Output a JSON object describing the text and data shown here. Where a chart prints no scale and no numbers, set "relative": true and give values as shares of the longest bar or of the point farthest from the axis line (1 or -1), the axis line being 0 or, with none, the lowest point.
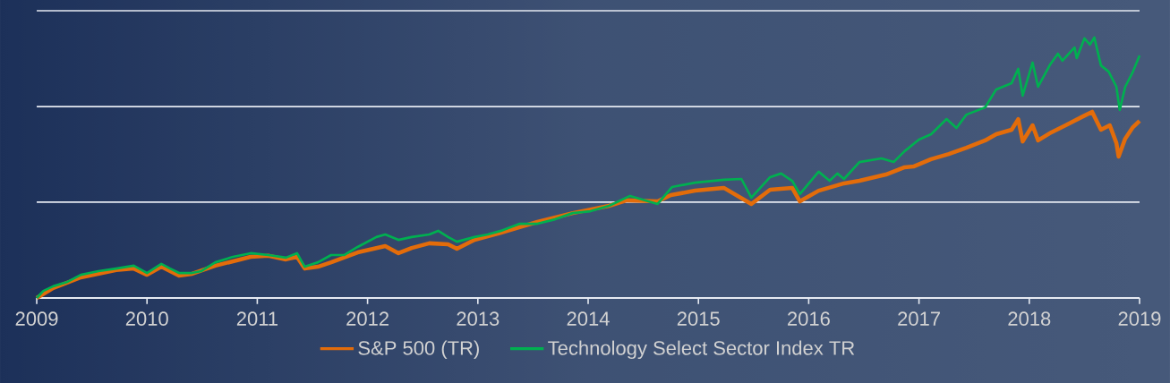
{
  "chart_data": {
    "type": "line",
    "relative": true,
    "xlim": [
      2009,
      2019
    ],
    "xticks": [
      2009,
      2010,
      2011,
      2012,
      2013,
      2014,
      2015,
      2016,
      2017,
      2018,
      2019
    ],
    "ref_lines": [
      {
        "axis": "y",
        "value": 0.368,
        "color": "#e6eaf2"
      },
      {
        "axis": "y",
        "value": 0.735,
        "color": "#e6eaf2"
      },
      {
        "axis": "y",
        "value": 1.103,
        "color": "#e6eaf2"
      }
    ],
    "legend": "bottom",
    "series": [
      {
        "name": "S&P 500 (TR)",
        "color": "#e36c0a",
        "x": [
          2009.0,
          2009.15,
          2009.4,
          2009.72,
          2009.88,
          2010.0,
          2010.13,
          2010.29,
          2010.41,
          2010.62,
          2010.94,
          2011.1,
          2011.26,
          2011.36,
          2011.43,
          2011.55,
          2011.67,
          2011.91,
          2012.16,
          2012.28,
          2012.4,
          2012.56,
          2012.73,
          2012.81,
          2012.97,
          2013.21,
          2013.54,
          2013.86,
          2014.19,
          2014.35,
          2014.63,
          2014.75,
          2014.97,
          2015.23,
          2015.48,
          2015.65,
          2015.85,
          2015.92,
          2016.09,
          2016.32,
          2016.46,
          2016.7,
          2016.87,
          2016.95,
          2017.11,
          2017.27,
          2017.43,
          2017.6,
          2017.7,
          2017.84,
          2017.9,
          2017.94,
          2018.03,
          2018.08,
          2018.2,
          2018.33,
          2018.49,
          2018.57,
          2018.65,
          2018.73,
          2018.79,
          2018.81,
          2018.87,
          2018.94,
          2019.0
        ],
        "values": [
          0,
          0.038,
          0.079,
          0.107,
          0.113,
          0.089,
          0.12,
          0.086,
          0.093,
          0.124,
          0.158,
          0.162,
          0.148,
          0.158,
          0.113,
          0.12,
          0.137,
          0.175,
          0.199,
          0.172,
          0.192,
          0.21,
          0.206,
          0.189,
          0.223,
          0.251,
          0.292,
          0.326,
          0.354,
          0.375,
          0.371,
          0.395,
          0.412,
          0.423,
          0.361,
          0.416,
          0.423,
          0.371,
          0.412,
          0.44,
          0.45,
          0.474,
          0.502,
          0.505,
          0.533,
          0.553,
          0.577,
          0.605,
          0.629,
          0.646,
          0.687,
          0.601,
          0.663,
          0.605,
          0.636,
          0.663,
          0.698,
          0.715,
          0.646,
          0.663,
          0.595,
          0.543,
          0.612,
          0.656,
          0.68
        ]
      },
      {
        "name": "Technology Select Sector Index TR",
        "color": "#00b050",
        "x": [
          2009.0,
          2009.06,
          2009.15,
          2009.28,
          2009.4,
          2009.56,
          2009.72,
          2009.88,
          2010.0,
          2010.13,
          2010.21,
          2010.29,
          2010.41,
          2010.49,
          2010.62,
          2010.78,
          2010.94,
          2011.1,
          2011.26,
          2011.36,
          2011.43,
          2011.55,
          2011.67,
          2011.79,
          2011.91,
          2012.08,
          2012.16,
          2012.28,
          2012.4,
          2012.56,
          2012.64,
          2012.73,
          2012.81,
          2012.97,
          2013.09,
          2013.21,
          2013.38,
          2013.54,
          2013.7,
          2013.86,
          2014.02,
          2014.19,
          2014.38,
          2014.63,
          2014.76,
          2014.97,
          2015.23,
          2015.39,
          2015.48,
          2015.65,
          2015.75,
          2015.85,
          2015.92,
          2016.09,
          2016.19,
          2016.26,
          2016.32,
          2016.46,
          2016.66,
          2016.77,
          2016.87,
          2017.0,
          2017.11,
          2017.25,
          2017.34,
          2017.43,
          2017.6,
          2017.7,
          2017.84,
          2017.9,
          2017.94,
          2018.03,
          2018.08,
          2018.19,
          2018.26,
          2018.3,
          2018.41,
          2018.43,
          2018.5,
          2018.55,
          2018.59,
          2018.65,
          2018.72,
          2018.79,
          2018.82,
          2018.87,
          2018.94,
          2019.0
        ],
        "values": [
          0,
          0.027,
          0.045,
          0.062,
          0.089,
          0.103,
          0.113,
          0.124,
          0.096,
          0.131,
          0.113,
          0.096,
          0.096,
          0.103,
          0.137,
          0.158,
          0.172,
          0.165,
          0.155,
          0.172,
          0.12,
          0.137,
          0.165,
          0.165,
          0.196,
          0.234,
          0.244,
          0.223,
          0.234,
          0.244,
          0.258,
          0.234,
          0.216,
          0.234,
          0.244,
          0.258,
          0.285,
          0.285,
          0.302,
          0.326,
          0.333,
          0.354,
          0.392,
          0.361,
          0.426,
          0.443,
          0.454,
          0.457,
          0.385,
          0.464,
          0.478,
          0.45,
          0.399,
          0.485,
          0.45,
          0.478,
          0.457,
          0.522,
          0.536,
          0.522,
          0.564,
          0.608,
          0.629,
          0.687,
          0.653,
          0.704,
          0.732,
          0.801,
          0.825,
          0.88,
          0.777,
          0.904,
          0.811,
          0.897,
          0.938,
          0.911,
          0.962,
          0.921,
          0.997,
          0.973,
          1,
          0.893,
          0.869,
          0.811,
          0.722,
          0.811,
          0.869,
          0.931
        ]
      }
    ]
  }
}
